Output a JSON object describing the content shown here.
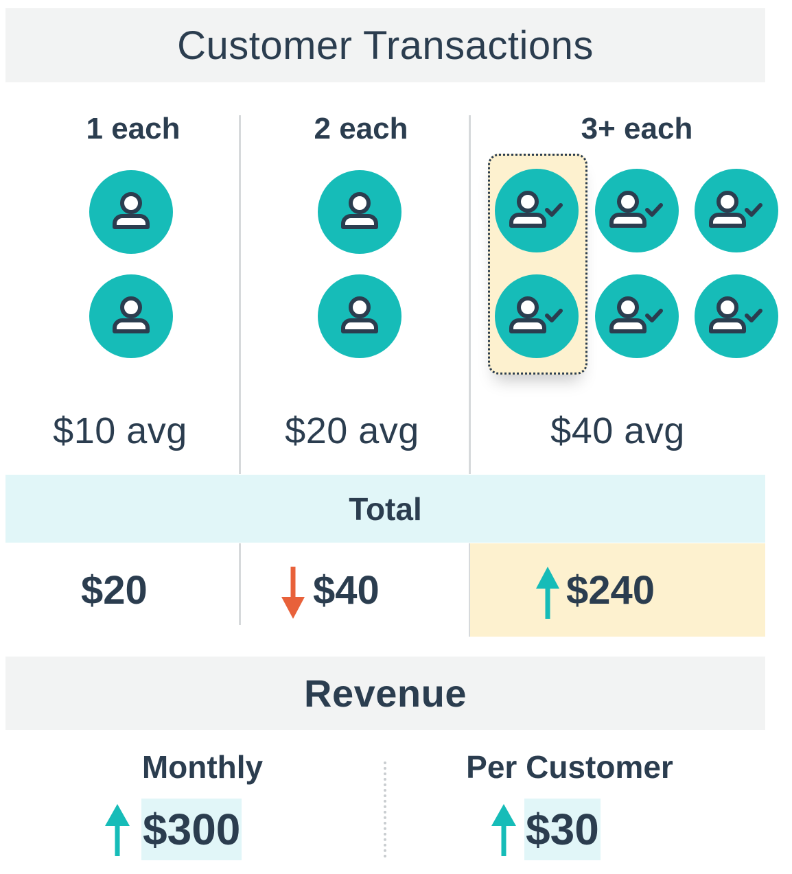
{
  "title": "Customer Transactions",
  "columns": [
    {
      "header": "1 each",
      "avg": "$10 avg",
      "total": "$20",
      "trend": "none",
      "customers": 2,
      "icon": "user-icon"
    },
    {
      "header": "2 each",
      "avg": "$20 avg",
      "total": "$40",
      "trend": "down",
      "customers": 2,
      "icon": "user-icon"
    },
    {
      "header": "3+ each",
      "avg": "$40 avg",
      "total": "$240",
      "trend": "up",
      "customers": 6,
      "icon": "user-check-icon"
    }
  ],
  "total_label": "Total",
  "revenue": {
    "title": "Revenue",
    "monthly": {
      "label": "Monthly",
      "value": "$300",
      "trend": "up"
    },
    "per_customer": {
      "label": "Per Customer",
      "value": "$30",
      "trend": "up"
    }
  },
  "colors": {
    "text": "#2b3d4f",
    "teal": "#16bcb8",
    "header_band": "#f2f3f3",
    "total_band": "#e1f6f8",
    "highlight": "#fdf1cf",
    "down_arrow": "#e8613a",
    "up_arrow": "#16bcb8"
  }
}
